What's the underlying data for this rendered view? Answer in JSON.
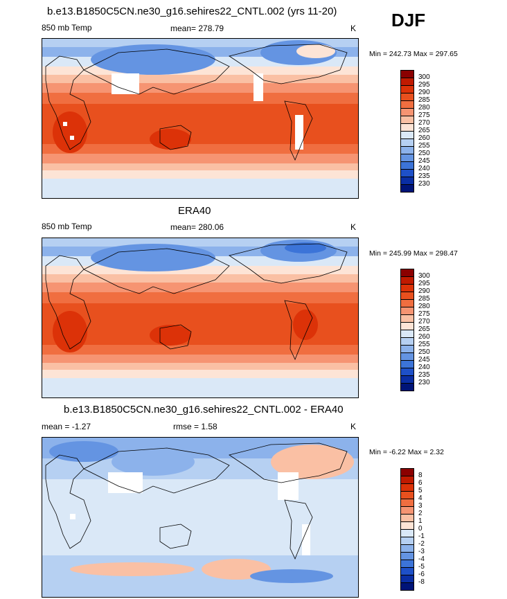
{
  "season": "DJF",
  "panels": [
    {
      "title": "b.e13.B1850C5CN.ne30_g16.sehires22_CNTL.002 (yrs 11-20)",
      "left_label": "850 mb Temp",
      "center_label": "mean= 278.79",
      "units": "K",
      "minmax": "Min = 242.73 Max = 297.65"
    },
    {
      "title": "ERA40",
      "left_label": "850 mb Temp",
      "center_label": "mean= 280.06",
      "units": "K",
      "minmax": "Min = 245.99 Max = 298.47"
    },
    {
      "title": "b.e13.B1850C5CN.ne30_g16.sehires22_CNTL.002 - ERA40",
      "left_label": "mean =  -1.27",
      "center_label": "rmse =   1.58",
      "units": "K",
      "minmax": "Min =  -6.22 Max =   2.32"
    }
  ],
  "colorbars": {
    "temperature": {
      "labels": [
        "300",
        "295",
        "290",
        "285",
        "280",
        "275",
        "270",
        "265",
        "260",
        "255",
        "250",
        "245",
        "240",
        "235",
        "230"
      ],
      "colors": [
        "#8b0000",
        "#c01a00",
        "#dc3208",
        "#e8501e",
        "#f06e40",
        "#f69472",
        "#fac0a4",
        "#fde4d6",
        "#dae8f7",
        "#b6d0f2",
        "#8cb2eb",
        "#6494e2",
        "#3c74d8",
        "#1e50c8",
        "#0a2ea4",
        "#001478"
      ]
    },
    "difference": {
      "labels": [
        "8",
        "6",
        "5",
        "4",
        "3",
        "2",
        "1",
        "0",
        "-1",
        "-2",
        "-3",
        "-4",
        "-5",
        "-6",
        "-8"
      ],
      "colors": [
        "#8b0000",
        "#c01a00",
        "#dc3208",
        "#e8501e",
        "#f06e40",
        "#f69472",
        "#fac0a4",
        "#fde4d6",
        "#dae8f7",
        "#b6d0f2",
        "#8cb2eb",
        "#6494e2",
        "#3c74d8",
        "#1e50c8",
        "#0a2ea4",
        "#001478"
      ]
    }
  }
}
